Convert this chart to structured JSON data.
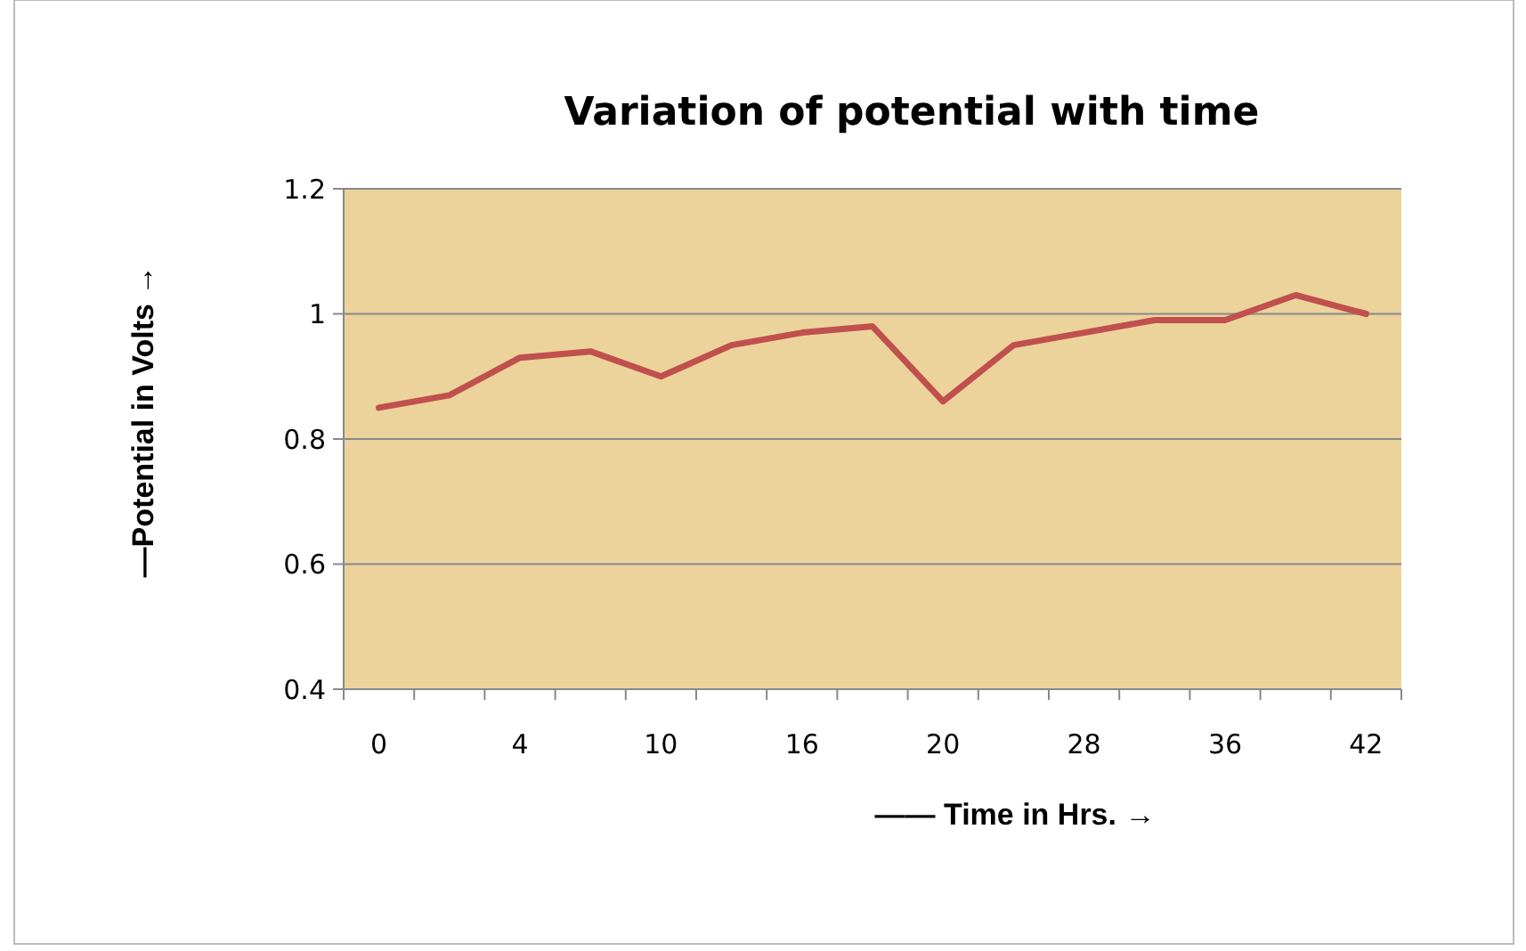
{
  "chart_data": {
    "type": "line",
    "title": "Variation of potential with time",
    "xlabel": "—— Time in Hrs. →",
    "ylabel": "—Potential in Volts →",
    "categories": [
      "0",
      null,
      "4",
      null,
      "10",
      null,
      "16",
      null,
      "20",
      null,
      "28",
      null,
      "36",
      null,
      "42"
    ],
    "series": [
      {
        "color": "#c0504d",
        "values": [
          0.85,
          0.87,
          0.93,
          0.94,
          0.9,
          0.95,
          0.97,
          0.98,
          0.86,
          0.95,
          0.97,
          0.99,
          0.99,
          1.03,
          1.0
        ]
      }
    ],
    "ylim": [
      0.4,
      1.2
    ],
    "yticks": [
      0.4,
      0.6,
      0.8,
      1,
      1.2
    ],
    "grid": "y",
    "marker": "none",
    "line_style": "solid"
  }
}
